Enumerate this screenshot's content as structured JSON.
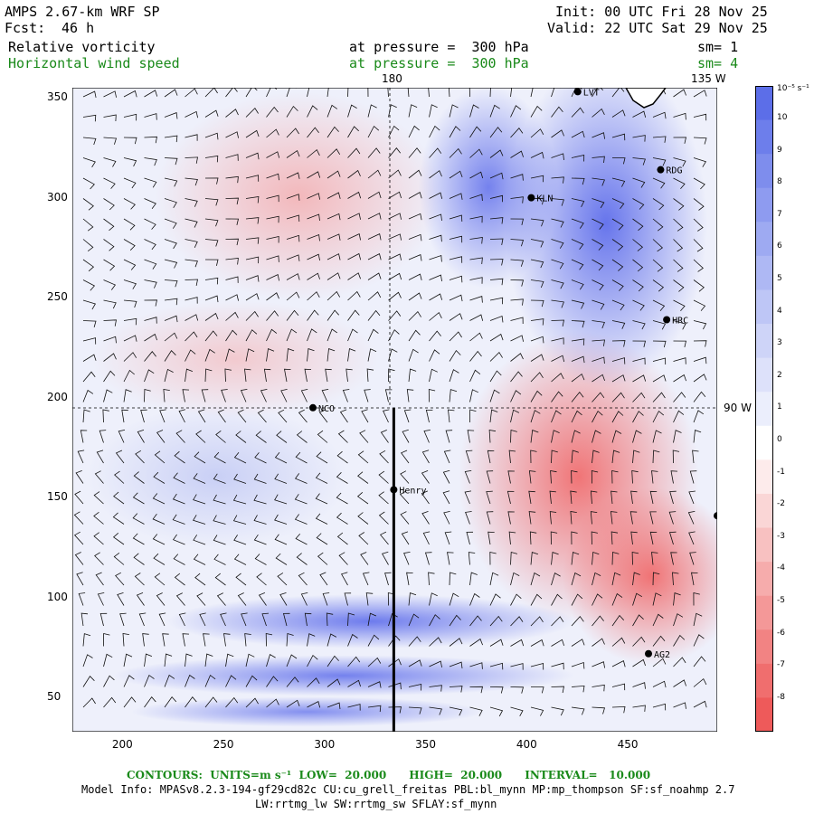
{
  "header": {
    "model": "AMPS 2.67-km WRF SP",
    "fcst_label": "Fcst:",
    "fcst_value": "46 h",
    "init": "Init: 00 UTC Fri 28 Nov 25",
    "valid": "Valid: 22 UTC Sat 29 Nov 25",
    "field1": "Relative vorticity",
    "field2": "Horizontal wind speed",
    "pressure1": "at pressure =  300 hPa",
    "pressure2": "at pressure =  300 hPa",
    "sm1": "sm= 1",
    "sm2": "sm= 4"
  },
  "map": {
    "lon_label_180": "180",
    "lon_label_135w": "135 W",
    "lon_label_90w": "90 W",
    "stations": [
      {
        "name": "LVT",
        "x": 425,
        "y": 353
      },
      {
        "name": "RDG",
        "x": 466,
        "y": 314
      },
      {
        "name": "KLN",
        "x": 402,
        "y": 300
      },
      {
        "name": "HRC",
        "x": 469,
        "y": 239
      },
      {
        "name": "NCO",
        "x": 294,
        "y": 195
      },
      {
        "name": "Henry",
        "x": 334,
        "y": 154
      },
      {
        "name": "",
        "x": 494,
        "y": 141
      },
      {
        "name": "AG2",
        "x": 460,
        "y": 72
      }
    ],
    "cross_section_x": 334,
    "cross_section_ymin": 33,
    "cross_section_ymax": 195
  },
  "axes": {
    "x_ticks": [
      "200",
      "250",
      "300",
      "350",
      "400",
      "450"
    ],
    "x_values": [
      200,
      250,
      300,
      350,
      400,
      450
    ],
    "y_ticks": [
      "350",
      "300",
      "250",
      "200",
      "150",
      "100",
      "50"
    ],
    "y_values": [
      350,
      300,
      250,
      200,
      150,
      100,
      50
    ],
    "xlim": [
      175,
      494
    ],
    "ylim": [
      33,
      355
    ]
  },
  "colorbar": {
    "unit_label": "10⁻⁵ s⁻¹",
    "labels": [
      "10",
      "9",
      "8",
      "7",
      "6",
      "5",
      "4",
      "3",
      "2",
      "1",
      "0",
      "-1",
      "-2",
      "-3",
      "-4",
      "-5",
      "-6",
      "-7",
      "-8"
    ],
    "colors": [
      "#5c6ee8",
      "#6d7eeb",
      "#7e8ded",
      "#8e9bf0",
      "#9eaaf2",
      "#aeb8f4",
      "#bec6f6",
      "#ced4f8",
      "#dde1fa",
      "#ebeefc",
      "#ffffff",
      "#fdebeb",
      "#fad6d6",
      "#f8c1c1",
      "#f6acac",
      "#f49898",
      "#f28383",
      "#f06e6e",
      "#ee5a5a"
    ]
  },
  "footer": {
    "contours": "CONTOURS:  UNITS=m s⁻¹  LOW=  20.000      HIGH=  20.000      INTERVAL=   10.000",
    "model_info": "Model Info: MPASv8.2.3-194-gf29cd82c CU:cu_grell_freitas PBL:bl_mynn MP:mp_thompson SF:sf_noahmp 2.7",
    "physics": "LW:rrtmg_lw SW:rrtmg_sw SFLAY:sf_mynn"
  }
}
